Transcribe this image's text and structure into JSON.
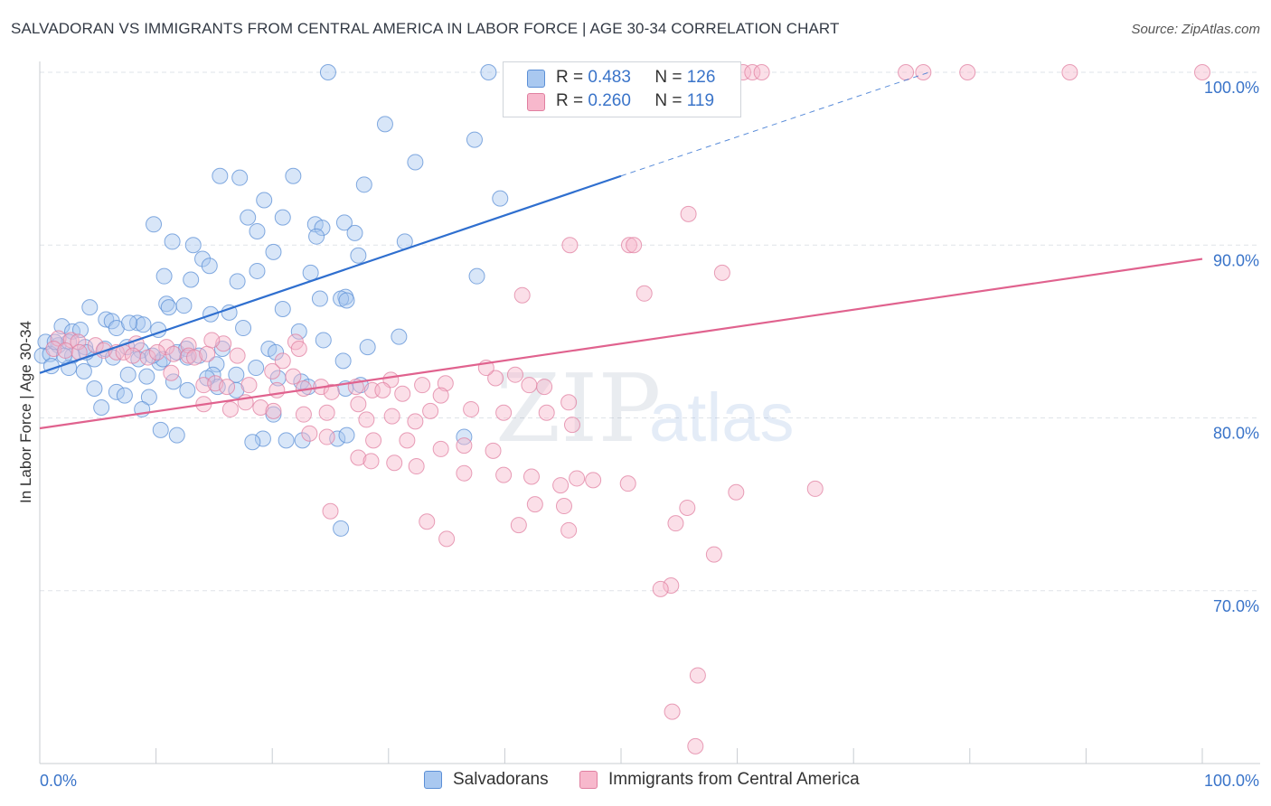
{
  "header": {
    "title": "SALVADORAN VS IMMIGRANTS FROM CENTRAL AMERICA IN LABOR FORCE | AGE 30-34 CORRELATION CHART",
    "source": "Source: ZipAtlas.com"
  },
  "legend": {
    "r_label": "R =",
    "n_label": "N =",
    "rows": [
      {
        "r": "0.483",
        "n": "126",
        "color": "#a9c8f0",
        "border": "#5b8fd6"
      },
      {
        "r": "0.260",
        "n": "119",
        "color": "#f7b8cc",
        "border": "#e07fa0"
      }
    ]
  },
  "bottom_legend": [
    {
      "label": "Salvadorans",
      "color": "#a9c8f0",
      "border": "#5b8fd6"
    },
    {
      "label": "Immigrants from Central America",
      "color": "#f7b8cc",
      "border": "#e07fa0"
    }
  ],
  "watermark": {
    "zip": "ZIP",
    "atlas": "atlas"
  },
  "chart_data": {
    "type": "scatter",
    "title": "SALVADORAN VS IMMIGRANTS FROM CENTRAL AMERICA IN LABOR FORCE | AGE 30-34 CORRELATION CHART",
    "ylabel": "In Labor Force | Age 30-34",
    "xlim": [
      0,
      100
    ],
    "ylim": [
      60,
      100
    ],
    "x_tick_labels": [
      "0.0%",
      "100.0%"
    ],
    "y_ticks": [
      70,
      80,
      90,
      100
    ],
    "y_tick_labels": [
      "70.0%",
      "80.0%",
      "90.0%",
      "100.0%"
    ],
    "grid": true,
    "legend_position": "top-center",
    "series": [
      {
        "name": "Salvadorans",
        "color": "#5b8fd6",
        "fill": "#a9c8f0",
        "r": 0.483,
        "n": 126,
        "trend": {
          "x": [
            0,
            50
          ],
          "y": [
            82.6,
            94
          ]
        },
        "trend_extension": {
          "x": [
            50,
            76.5
          ],
          "y": [
            94,
            100
          ]
        },
        "points": [
          [
            24.8,
            100
          ],
          [
            38.6,
            100
          ],
          [
            43,
            100
          ],
          [
            47.5,
            100
          ],
          [
            51.2,
            100
          ],
          [
            29.7,
            97
          ],
          [
            37.4,
            96.1
          ],
          [
            15.5,
            94
          ],
          [
            17.2,
            93.9
          ],
          [
            21.8,
            94
          ],
          [
            32.3,
            94.8
          ],
          [
            27.9,
            93.5
          ],
          [
            39.6,
            92.7
          ],
          [
            19.3,
            92.6
          ],
          [
            20.9,
            91.6
          ],
          [
            17.9,
            91.6
          ],
          [
            26.2,
            91.3
          ],
          [
            23.7,
            91.2
          ],
          [
            24.3,
            91
          ],
          [
            27.1,
            90.7
          ],
          [
            23.8,
            90.5
          ],
          [
            9.8,
            91.2
          ],
          [
            11.4,
            90.2
          ],
          [
            13.2,
            90
          ],
          [
            31.4,
            90.2
          ],
          [
            18.7,
            90.8
          ],
          [
            20.1,
            89.6
          ],
          [
            14,
            89.2
          ],
          [
            14.6,
            88.8
          ],
          [
            18.7,
            88.5
          ],
          [
            27.4,
            89.4
          ],
          [
            10.7,
            88.2
          ],
          [
            13,
            88
          ],
          [
            17,
            87.9
          ],
          [
            23.3,
            88.4
          ],
          [
            37.6,
            88.2
          ],
          [
            26.3,
            87
          ],
          [
            10.9,
            86.6
          ],
          [
            12.4,
            86.5
          ],
          [
            24.1,
            86.9
          ],
          [
            25.9,
            86.9
          ],
          [
            26.4,
            86.8
          ],
          [
            4.3,
            86.4
          ],
          [
            11.1,
            86.4
          ],
          [
            14.7,
            86
          ],
          [
            16.3,
            86.1
          ],
          [
            20.9,
            86.3
          ],
          [
            5.7,
            85.7
          ],
          [
            6.2,
            85.6
          ],
          [
            8.4,
            85.5
          ],
          [
            8.9,
            85.4
          ],
          [
            1.9,
            85.3
          ],
          [
            2.8,
            85
          ],
          [
            3.5,
            85.1
          ],
          [
            6.6,
            85.2
          ],
          [
            10.2,
            85.1
          ],
          [
            17.5,
            85.2
          ],
          [
            30.9,
            84.7
          ],
          [
            0.5,
            84.4
          ],
          [
            1.6,
            84.2
          ],
          [
            2.5,
            84.4
          ],
          [
            3.9,
            84.1
          ],
          [
            5.6,
            84
          ],
          [
            7.5,
            84.1
          ],
          [
            8.7,
            83.9
          ],
          [
            11.8,
            83.8
          ],
          [
            12.6,
            84
          ],
          [
            15.7,
            84
          ],
          [
            19.7,
            84
          ],
          [
            20.3,
            83.8
          ],
          [
            0.2,
            83.6
          ],
          [
            0.9,
            83.7
          ],
          [
            2.8,
            83.6
          ],
          [
            4.7,
            83.4
          ],
          [
            6.3,
            83.5
          ],
          [
            8.5,
            83.4
          ],
          [
            10.3,
            83.2
          ],
          [
            12.7,
            83.5
          ],
          [
            15.2,
            83.1
          ],
          [
            18.6,
            82.9
          ],
          [
            26.1,
            83.3
          ],
          [
            1,
            83
          ],
          [
            2.5,
            82.9
          ],
          [
            3.8,
            82.7
          ],
          [
            7.6,
            82.5
          ],
          [
            9.2,
            82.4
          ],
          [
            11.5,
            82.1
          ],
          [
            14.9,
            82.5
          ],
          [
            16.9,
            82.5
          ],
          [
            20.5,
            82.3
          ],
          [
            22.5,
            82.1
          ],
          [
            23.1,
            81.8
          ],
          [
            6.6,
            81.5
          ],
          [
            9.4,
            81.2
          ],
          [
            4.7,
            81.7
          ],
          [
            7.3,
            81.3
          ],
          [
            12.7,
            81.6
          ],
          [
            15.3,
            81.8
          ],
          [
            16.9,
            81.6
          ],
          [
            26.3,
            81.7
          ],
          [
            27.6,
            81.9
          ],
          [
            36.5,
            78.9
          ],
          [
            19.2,
            78.8
          ],
          [
            21.2,
            78.7
          ],
          [
            25.6,
            78.8
          ],
          [
            26.4,
            79
          ],
          [
            10.4,
            79.3
          ],
          [
            11.8,
            79
          ],
          [
            8.8,
            80.5
          ],
          [
            20.1,
            80.2
          ],
          [
            5.3,
            80.6
          ],
          [
            18.3,
            78.6
          ],
          [
            22.6,
            78.7
          ],
          [
            25.9,
            73.6
          ],
          [
            13.7,
            83.6
          ],
          [
            10.6,
            83.4
          ],
          [
            7.7,
            85.5
          ],
          [
            4,
            83.8
          ],
          [
            1.3,
            84.4
          ],
          [
            14.4,
            82.3
          ],
          [
            22.3,
            85
          ],
          [
            24.4,
            84.5
          ],
          [
            28.2,
            84.1
          ],
          [
            9.7,
            83.6
          ],
          [
            2.1,
            83.6
          ]
        ]
      },
      {
        "name": "Immigrants from Central America",
        "color": "#e07fa0",
        "fill": "#f7b8cc",
        "r": 0.26,
        "n": 119,
        "trend": {
          "x": [
            0,
            100
          ],
          "y": [
            79.4,
            89.2
          ]
        },
        "points": [
          [
            53.3,
            100
          ],
          [
            56.4,
            100
          ],
          [
            60.5,
            100
          ],
          [
            61.3,
            100
          ],
          [
            62.1,
            100
          ],
          [
            74.5,
            100
          ],
          [
            76,
            100
          ],
          [
            79.8,
            100
          ],
          [
            88.6,
            100
          ],
          [
            100,
            100
          ],
          [
            55.8,
            91.8
          ],
          [
            45.6,
            90
          ],
          [
            50.7,
            90
          ],
          [
            51.1,
            90
          ],
          [
            58.7,
            88.4
          ],
          [
            52,
            87.2
          ],
          [
            41.5,
            87.1
          ],
          [
            1.6,
            84.6
          ],
          [
            2.7,
            84.5
          ],
          [
            3.3,
            84.4
          ],
          [
            4.8,
            84.2
          ],
          [
            8.3,
            84.3
          ],
          [
            10.9,
            84.1
          ],
          [
            12.8,
            84.2
          ],
          [
            15.8,
            84.3
          ],
          [
            1.2,
            84
          ],
          [
            2.2,
            83.9
          ],
          [
            3.4,
            83.8
          ],
          [
            5.5,
            83.9
          ],
          [
            6.6,
            83.8
          ],
          [
            7.2,
            83.8
          ],
          [
            8,
            83.6
          ],
          [
            9.3,
            83.5
          ],
          [
            10.1,
            83.8
          ],
          [
            11.5,
            83.7
          ],
          [
            12.8,
            83.6
          ],
          [
            13.3,
            83.5
          ],
          [
            14.4,
            83.7
          ],
          [
            17,
            83.6
          ],
          [
            20.9,
            83.3
          ],
          [
            11.3,
            82.6
          ],
          [
            20,
            82.7
          ],
          [
            21.8,
            82.4
          ],
          [
            30.2,
            82.2
          ],
          [
            34.9,
            82
          ],
          [
            39.2,
            82.3
          ],
          [
            40.9,
            82.5
          ],
          [
            14.1,
            81.9
          ],
          [
            15.1,
            82
          ],
          [
            16.1,
            81.8
          ],
          [
            18,
            81.9
          ],
          [
            20.4,
            81.6
          ],
          [
            22.7,
            81.7
          ],
          [
            24.2,
            81.8
          ],
          [
            25.1,
            81.5
          ],
          [
            27.2,
            81.8
          ],
          [
            28.6,
            81.6
          ],
          [
            29.5,
            81.6
          ],
          [
            31.2,
            81.4
          ],
          [
            32.9,
            81.9
          ],
          [
            34.5,
            81.3
          ],
          [
            42.1,
            81.9
          ],
          [
            43.4,
            81.8
          ],
          [
            14.1,
            80.8
          ],
          [
            17.7,
            80.9
          ],
          [
            19,
            80.6
          ],
          [
            20.1,
            80.4
          ],
          [
            22.7,
            80.2
          ],
          [
            24.7,
            80.3
          ],
          [
            27.4,
            80.8
          ],
          [
            30.3,
            80.1
          ],
          [
            33.6,
            80.4
          ],
          [
            37.1,
            80.5
          ],
          [
            39.9,
            80.3
          ],
          [
            43.6,
            80.3
          ],
          [
            45.5,
            80.9
          ],
          [
            28.1,
            79.9
          ],
          [
            32.3,
            79.8
          ],
          [
            45.8,
            79.6
          ],
          [
            23.2,
            79.1
          ],
          [
            24.7,
            78.9
          ],
          [
            31.6,
            78.7
          ],
          [
            28.7,
            78.7
          ],
          [
            34.5,
            78.2
          ],
          [
            36.5,
            78.4
          ],
          [
            39,
            78.1
          ],
          [
            27.4,
            77.7
          ],
          [
            28.5,
            77.5
          ],
          [
            30.5,
            77.4
          ],
          [
            32.4,
            77.2
          ],
          [
            36.5,
            76.8
          ],
          [
            39.9,
            76.7
          ],
          [
            42.3,
            76.6
          ],
          [
            46.2,
            76.5
          ],
          [
            47.6,
            76.4
          ],
          [
            44.8,
            76.1
          ],
          [
            50.6,
            76.2
          ],
          [
            59.9,
            75.7
          ],
          [
            66.7,
            75.9
          ],
          [
            42.6,
            75
          ],
          [
            45.1,
            74.9
          ],
          [
            55.7,
            74.8
          ],
          [
            41.2,
            73.8
          ],
          [
            45.5,
            73.5
          ],
          [
            54.7,
            73.9
          ],
          [
            58,
            72.1
          ],
          [
            54.3,
            70.3
          ],
          [
            53.4,
            70.1
          ],
          [
            56.6,
            65.1
          ],
          [
            54.4,
            63
          ],
          [
            56.4,
            61
          ],
          [
            25,
            74.6
          ],
          [
            33.3,
            74
          ],
          [
            35,
            73
          ],
          [
            14.8,
            84.5
          ],
          [
            22,
            84.4
          ],
          [
            22.3,
            84
          ],
          [
            16.4,
            80.5
          ],
          [
            38.4,
            82.9
          ]
        ]
      }
    ]
  }
}
